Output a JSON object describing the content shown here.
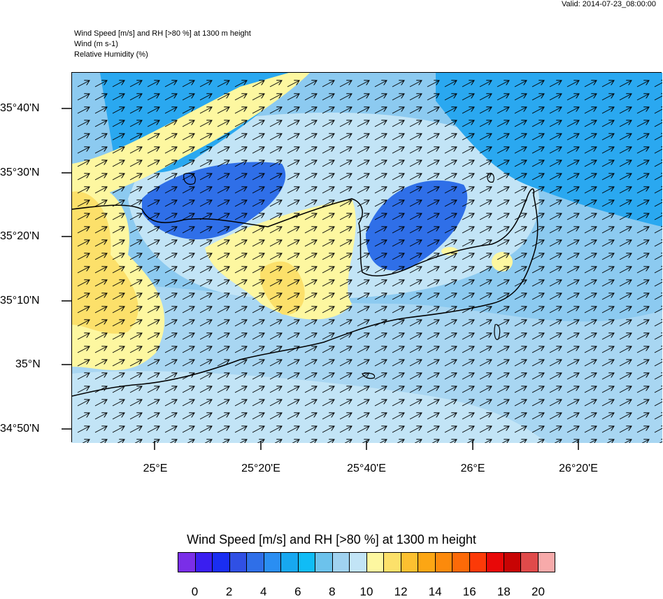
{
  "valid_time": "Valid: 2014-07-23_08:00:00",
  "header": {
    "line1": "Wind Speed [m/s] and RH [>80 %] at 1300 m height",
    "line2": "Wind   (m s-1)",
    "line3": "Relative Humidity   (%)"
  },
  "lat_labels": [
    "35°40'N",
    "35°30'N",
    "35°20'N",
    "35°10'N",
    "35°N",
    "34°50'N"
  ],
  "lon_labels": [
    "25°E",
    "25°20'E",
    "25°40'E",
    "26°E",
    "26°20'E"
  ],
  "colorbar": {
    "title": "Wind Speed [m/s] and RH [>80 %] at 1300 m height",
    "colors": [
      "#7a2ee8",
      "#3a1ef0",
      "#1a2ef2",
      "#3050e4",
      "#2f6fe8",
      "#2a8ef2",
      "#17a8f0",
      "#10bcf6",
      "#6cc2ec",
      "#a0d2f0",
      "#c2e4f6",
      "#fdf7a0",
      "#fce06a",
      "#fcc030",
      "#fca614",
      "#fc8a0c",
      "#fc6a08",
      "#fc3a08",
      "#e80808",
      "#c80404",
      "#e04a4a",
      "#f7aaaa"
    ],
    "labels": [
      "0",
      "2",
      "4",
      "6",
      "8",
      "10",
      "12",
      "14",
      "16",
      "18",
      "20"
    ]
  }
}
